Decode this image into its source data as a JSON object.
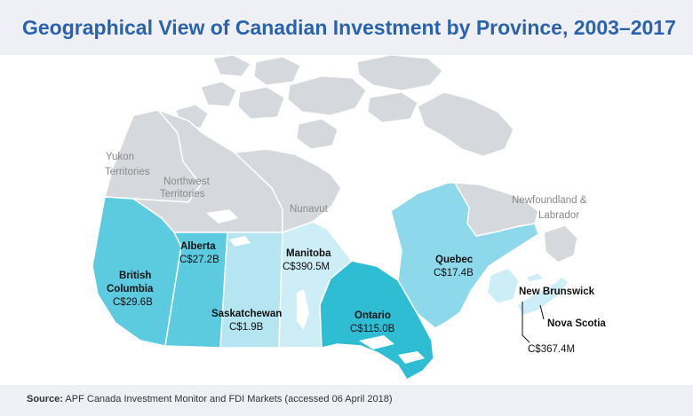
{
  "title": "Geographical View of Canadian Investment by Province, 2003–2017",
  "source": {
    "label": "Source:",
    "text": "APF Canada Investment Monitor and FDI Markets (accessed 06 April 2018)"
  },
  "colors": {
    "territory": "#d5d9dd",
    "high": "#2fbdd3",
    "medium": "#5ccbe0",
    "light": "#8dd8ea",
    "pale": "#b5e5f1",
    "palest": "#cdeef6",
    "title": "#2a63ad"
  },
  "territories": {
    "yukon": "Yukon",
    "yukon2": "Territories",
    "northwest": "Northwest",
    "northwest2": "Territories",
    "nunavut": "Nunavut",
    "newfoundland": "Newfoundland &",
    "newfoundland2": "Labrador"
  },
  "provinces": {
    "bc": {
      "name1": "British",
      "name2": "Columbia",
      "value": "C$29.6B"
    },
    "alberta": {
      "name": "Alberta",
      "value": "C$27.2B"
    },
    "saskatchewan": {
      "name": "Saskatchewan",
      "value": "C$1.9B"
    },
    "manitoba": {
      "name": "Manitoba",
      "value": "C$390.5M"
    },
    "ontario": {
      "name": "Ontario",
      "value": "C$115.0B"
    },
    "quebec": {
      "name": "Quebec",
      "value": "C$17.4B"
    },
    "new_brunswick": {
      "name": "New Brunswick"
    },
    "nova_scotia": {
      "name": "Nova Scotia"
    },
    "maritimes_value": "C$367.4M"
  }
}
